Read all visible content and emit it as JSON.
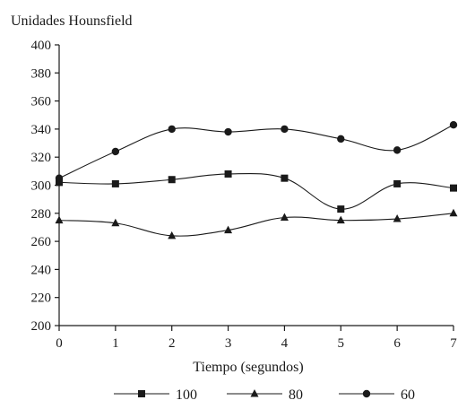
{
  "chart_data": {
    "type": "line",
    "title": "",
    "ylabel": "Unidades Hounsfield",
    "xlabel": "Tiempo (segundos)",
    "x": [
      0,
      1,
      2,
      3,
      4,
      5,
      6,
      7
    ],
    "xticks": [
      "0",
      "1",
      "2",
      "3",
      "4",
      "5",
      "6",
      "7"
    ],
    "ylim": [
      200,
      400
    ],
    "yticks": [
      "200",
      "220",
      "240",
      "260",
      "280",
      "300",
      "320",
      "340",
      "360",
      "380",
      "400"
    ],
    "grid": false,
    "legend_position": "bottom",
    "series": [
      {
        "name": "100",
        "marker": "square",
        "values": [
          302,
          301,
          304,
          308,
          305,
          283,
          301,
          298
        ]
      },
      {
        "name": "80",
        "marker": "triangle",
        "values": [
          275,
          273,
          264,
          268,
          277,
          275,
          276,
          280
        ]
      },
      {
        "name": "60",
        "marker": "circle",
        "values": [
          305,
          324,
          340,
          338,
          340,
          333,
          325,
          343
        ]
      }
    ],
    "line_color": "#1a1a1a"
  }
}
